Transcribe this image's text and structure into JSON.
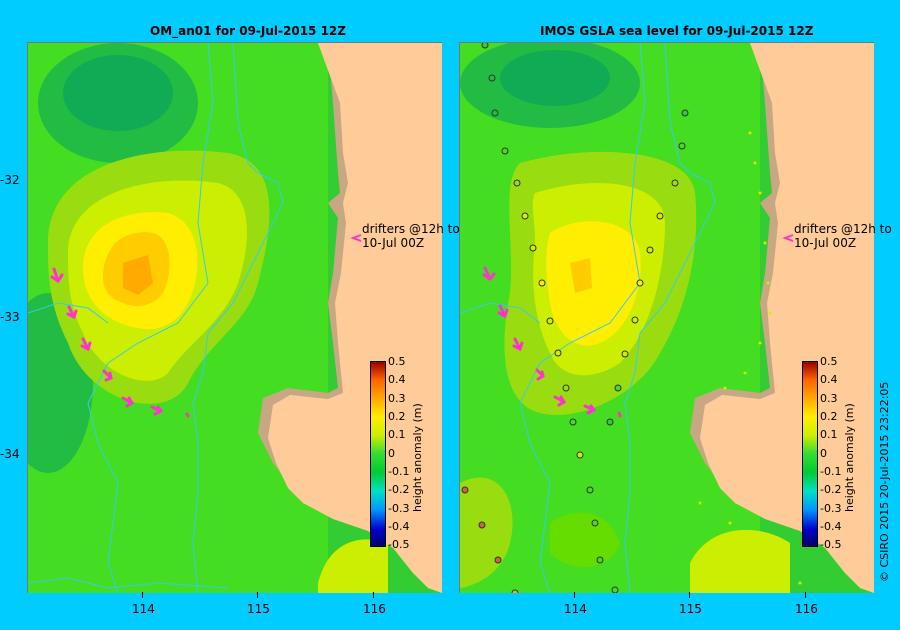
{
  "left_panel": {
    "title": "OM_an01  for 09-Jul-2015 12Z",
    "note_line1": "drifters @12h to",
    "note_line2": "10-Jul 00Z"
  },
  "right_panel": {
    "title": "IMOS GSLA sea level  for 09-Jul-2015 12Z",
    "note_line1": "drifters @12h to",
    "note_line2": "10-Jul 00Z"
  },
  "axes": {
    "lat_ticks": [
      "-32",
      "-33",
      "-34"
    ],
    "lon_ticks": [
      "114",
      "115",
      "116"
    ]
  },
  "colorbar": {
    "title": "height anomaly (m)",
    "labels": [
      "0.5",
      "0.4",
      "0.3",
      "0.2",
      "0.1",
      "0",
      "-0.1",
      "-0.2",
      "-0.3",
      "-0.4",
      "-0.5"
    ]
  },
  "credit": "© CSIRO 2015   20-Jul-2015 23:22:05",
  "colors": {
    "background": "#00ccff",
    "land": "#ffcc99",
    "shelf": "#c8a882",
    "drifter_arrow": "#ff33cc",
    "isobath": "#33ccee"
  }
}
